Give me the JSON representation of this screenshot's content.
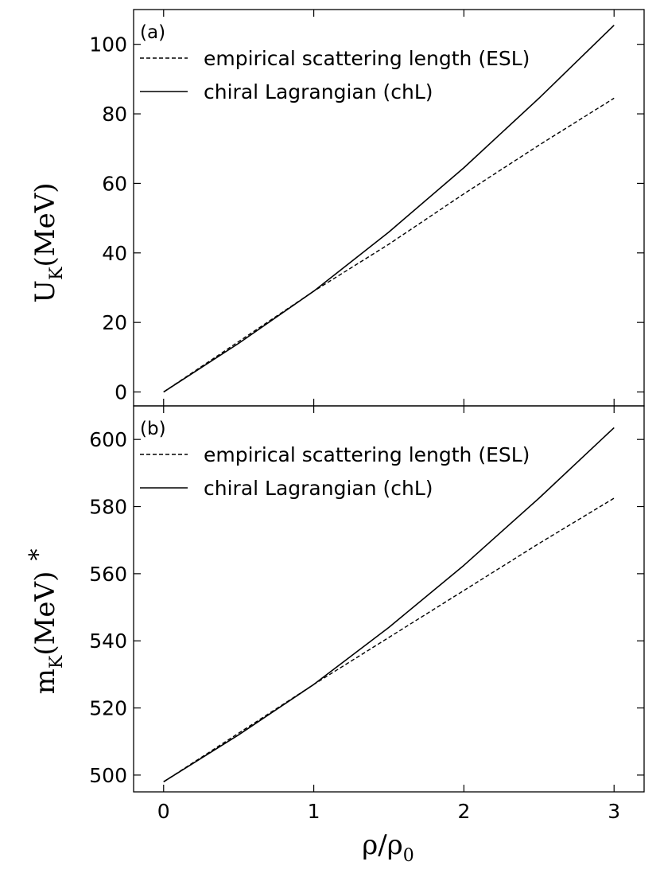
{
  "chart_data": [
    {
      "type": "line",
      "panel_label": "(a)",
      "ylabel": {
        "main": "U",
        "sub": "K",
        "unit": "(MeV)"
      },
      "xlim": [
        -0.2,
        3.2
      ],
      "ylim": [
        -4,
        110
      ],
      "xticks": [
        0,
        1,
        2,
        3
      ],
      "yticks": [
        0,
        20,
        40,
        60,
        80,
        100
      ],
      "grid": false,
      "legend_position": "top-left",
      "series": [
        {
          "name": "empirical scattering length (ESL)",
          "style": "dashed",
          "x": [
            0,
            0.5,
            1.0,
            1.5,
            2.0,
            2.5,
            3.0
          ],
          "y": [
            0,
            14.5,
            29,
            42.5,
            57,
            71,
            84.5
          ]
        },
        {
          "name": "chiral Lagrangian (chL)",
          "style": "solid",
          "x": [
            0,
            0.5,
            1.0,
            1.5,
            2.0,
            2.5,
            3.0
          ],
          "y": [
            0,
            14,
            29,
            46,
            64.5,
            84.5,
            105.5
          ]
        }
      ]
    },
    {
      "type": "line",
      "panel_label": "(b)",
      "ylabel": {
        "main": "m",
        "sup": "*",
        "sub": "K",
        "unit": "(MeV)"
      },
      "xlabel": {
        "num": "ρ",
        "den": "ρ",
        "den_sub": "0"
      },
      "xlim": [
        -0.2,
        3.2
      ],
      "ylim": [
        495,
        610
      ],
      "xticks": [
        0,
        1,
        2,
        3
      ],
      "yticks": [
        500,
        520,
        540,
        560,
        580,
        600
      ],
      "grid": false,
      "legend_position": "top-left",
      "series": [
        {
          "name": "empirical scattering length (ESL)",
          "style": "dashed",
          "x": [
            0,
            0.5,
            1.0,
            1.5,
            2.0,
            2.5,
            3.0
          ],
          "y": [
            498,
            512.5,
            527,
            541,
            555,
            569,
            582.5
          ]
        },
        {
          "name": "chiral Lagrangian (chL)",
          "style": "solid",
          "x": [
            0,
            0.5,
            1.0,
            1.5,
            2.0,
            2.5,
            3.0
          ],
          "y": [
            498,
            512,
            527,
            544,
            562.5,
            582.5,
            603.5
          ]
        }
      ]
    }
  ]
}
